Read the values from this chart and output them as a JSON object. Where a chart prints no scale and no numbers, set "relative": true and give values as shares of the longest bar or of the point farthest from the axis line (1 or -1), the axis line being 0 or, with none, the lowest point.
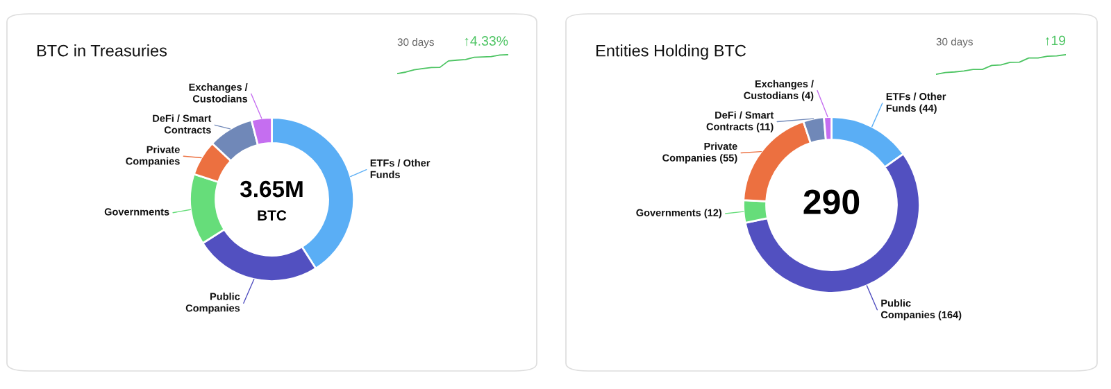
{
  "chart_data": [
    {
      "type": "donut",
      "title": "BTC in Treasuries",
      "annotations": [
        "3.65M",
        "BTC"
      ],
      "categories": [
        "ETFs / Other\nFunds",
        "Public\nCompanies",
        "Governments",
        "Private\nCompanies",
        "DeFi / Smart\nContracts",
        "Exchanges /\nCustodians"
      ],
      "values": [
        41,
        25,
        14,
        7,
        9,
        4
      ],
      "colors": [
        "#5aaef5",
        "#5250c0",
        "#66dd7a",
        "#ec7040",
        "#7088b8",
        "#c56ef0"
      ]
    },
    {
      "type": "line",
      "title": "30 days",
      "annotations": [
        "↑4.33%"
      ],
      "relative": true,
      "categories": [
        null,
        null,
        null,
        null,
        null,
        null,
        null,
        null,
        null,
        null,
        null,
        null,
        null,
        null
      ],
      "series": [
        {
          "color": "#4cc462",
          "values": [
            0,
            0.08,
            0.2,
            0.27,
            0.32,
            0.33,
            0.67,
            0.71,
            0.74,
            0.86,
            0.88,
            0.9,
            0.98,
            1
          ]
        }
      ]
    },
    {
      "type": "donut",
      "title": "Entities Holding BTC",
      "annotations": [
        "290"
      ],
      "categories": [
        "ETFs / Other\nFunds",
        "Public\nCompanies",
        "Governments",
        "Private\nCompanies",
        "DeFi / Smart\nContracts",
        "Exchanges /\nCustodians"
      ],
      "values": [
        44,
        164,
        12,
        55,
        11,
        4
      ],
      "value_labels": [
        "(44)",
        "(164)",
        "(12)",
        "(55)",
        "(11)",
        "(4)"
      ],
      "colors": [
        "#5aaef5",
        "#5250c0",
        "#66dd7a",
        "#ec7040",
        "#7088b8",
        "#c56ef0"
      ]
    },
    {
      "type": "line",
      "title": "30 days",
      "annotations": [
        "↑19"
      ],
      "relative": true,
      "categories": [
        null,
        null,
        null,
        null,
        null,
        null,
        null,
        null,
        null,
        null,
        null,
        null,
        null,
        null,
        null
      ],
      "series": [
        {
          "color": "#4cc462",
          "values": [
            0,
            0.09,
            0.12,
            0.17,
            0.25,
            0.25,
            0.45,
            0.48,
            0.61,
            0.62,
            0.83,
            0.83,
            0.92,
            0.94,
            1
          ]
        }
      ]
    }
  ]
}
